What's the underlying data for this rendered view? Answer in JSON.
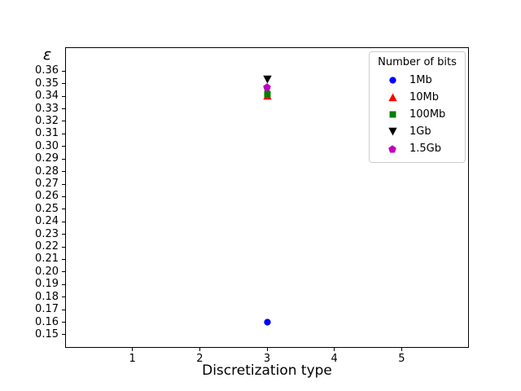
{
  "figure": {
    "background": "#ffffff"
  },
  "chart_data": {
    "type": "scatter",
    "title": "",
    "xlabel": "Discretization type",
    "ylabel": "ε",
    "xlim": [
      0,
      6
    ],
    "ylim": [
      0.1396,
      0.379
    ],
    "grid": false,
    "legend": {
      "title": "Number of bits",
      "position": "upper right"
    },
    "xticks": {
      "values": [
        1,
        2,
        3,
        4,
        5
      ],
      "labels": [
        "1",
        "2",
        "3",
        "4",
        "5"
      ]
    },
    "yticks": {
      "values": [
        0.36,
        0.35,
        0.34,
        0.33,
        0.32,
        0.31,
        0.3,
        0.29,
        0.28,
        0.27,
        0.26,
        0.25,
        0.24,
        0.23,
        0.22,
        0.21,
        0.2,
        0.19,
        0.18,
        0.17,
        0.16,
        0.15
      ],
      "labels": [
        "0.36",
        "0.35",
        "0.34",
        "0.33",
        "0.32",
        "0.31",
        "0.30",
        "0.29",
        "0.28",
        "0.27",
        "0.26",
        "0.25",
        "0.24",
        "0.23",
        "0.22",
        "0.21",
        "0.20",
        "0.19",
        "0.18",
        "0.17",
        "0.16",
        "0.15"
      ]
    },
    "series": [
      {
        "name": "1Mb",
        "marker": "circle",
        "color": "#0000ff",
        "points": [
          {
            "x": 3,
            "y": 0.16
          }
        ]
      },
      {
        "name": "10Mb",
        "marker": "triangle-up",
        "color": "#ff0000",
        "points": [
          {
            "x": 3,
            "y": 0.3405
          }
        ]
      },
      {
        "name": "100Mb",
        "marker": "square",
        "color": "#008000",
        "points": [
          {
            "x": 3,
            "y": 0.3415
          }
        ]
      },
      {
        "name": "1Gb",
        "marker": "triangle-down",
        "color": "#000000",
        "points": [
          {
            "x": 3,
            "y": 0.3535
          }
        ]
      },
      {
        "name": "1.5Gb",
        "marker": "pentagon",
        "color": "#bf00bf",
        "points": [
          {
            "x": 3,
            "y": 0.347
          }
        ]
      }
    ]
  }
}
